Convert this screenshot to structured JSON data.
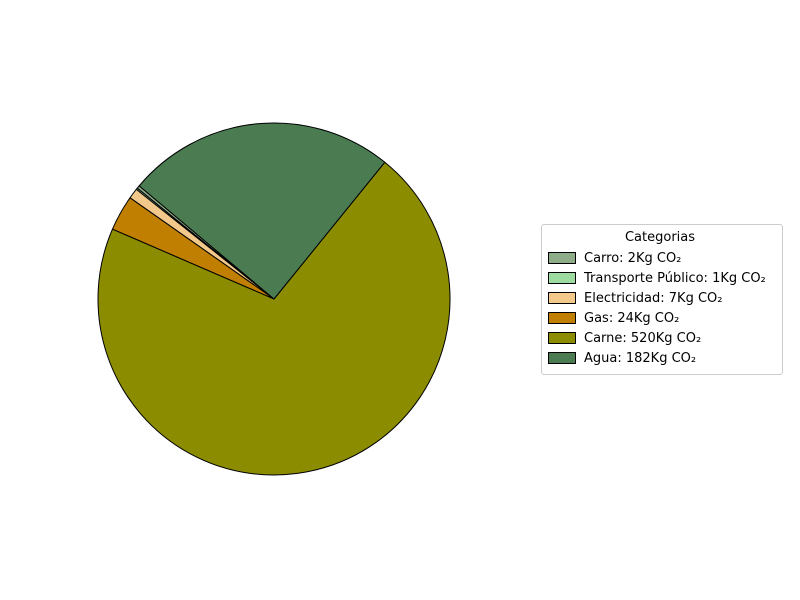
{
  "chart_data": {
    "type": "pie",
    "legend_title": "Categorias",
    "legend_position": "right",
    "start_angle_deg": 140,
    "direction": "counterclockwise",
    "slices": [
      {
        "label": "Carro: 2Kg CO₂",
        "value": 2,
        "color": "#8fac88"
      },
      {
        "label": "Transporte Público: 1Kg CO₂",
        "value": 1,
        "color": "#9edba0"
      },
      {
        "label": "Electricidad: 7Kg CO₂",
        "value": 7,
        "color": "#f3c98b"
      },
      {
        "label": "Gas: 24Kg CO₂",
        "value": 24,
        "color": "#c07f00"
      },
      {
        "label": "Carne: 520Kg CO₂",
        "value": 520,
        "color": "#8b8c00"
      },
      {
        "label": "Agua: 182Kg CO₂",
        "value": 182,
        "color": "#4a7b51"
      }
    ]
  }
}
